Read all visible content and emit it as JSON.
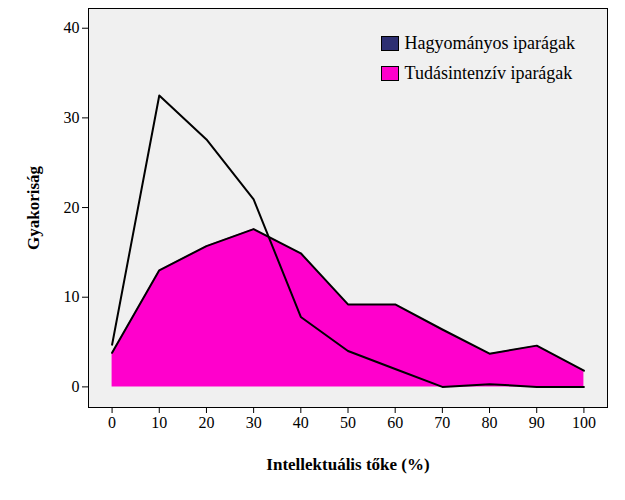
{
  "chart_data": {
    "type": "area",
    "x_label": "Intellektuális tőke (%)",
    "y_label": "Gyakoriság",
    "x": [
      0,
      10,
      20,
      30,
      40,
      50,
      60,
      70,
      80,
      90,
      100
    ],
    "series": [
      {
        "name": "Hagyományos iparágak",
        "color": "#2d2f72",
        "values": [
          4.7,
          32.5,
          27.6,
          20.9,
          7.8,
          4.0,
          2.0,
          0.0,
          0.3,
          0.0,
          0.0
        ]
      },
      {
        "name": "Tudásintenzív iparágak",
        "color": "#ff00cc",
        "values": [
          3.8,
          13.0,
          15.7,
          17.6,
          14.9,
          9.2,
          9.2,
          6.4,
          3.7,
          4.6,
          1.8
        ]
      }
    ],
    "xlim": [
      -5,
      105
    ],
    "ylim": [
      -2.3,
      42.2
    ],
    "xticks": [
      0,
      10,
      20,
      30,
      40,
      50,
      60,
      70,
      80,
      90,
      100
    ],
    "yticks": [
      0,
      10,
      20,
      30,
      40
    ],
    "legend": "top-right"
  }
}
